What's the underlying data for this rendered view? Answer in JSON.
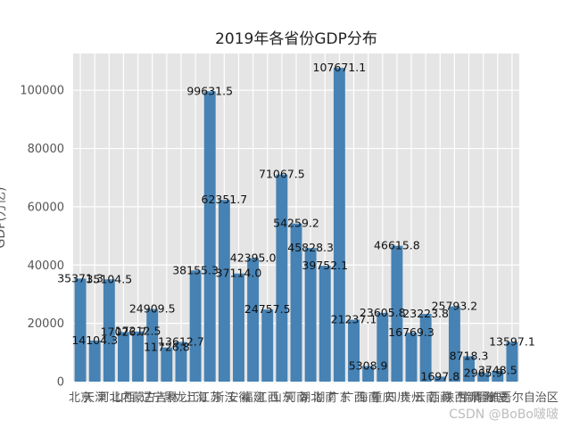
{
  "chart_data": {
    "type": "bar",
    "title": "2019年各省份GDP分布",
    "xlabel": "",
    "ylabel": "GDP(万亿)",
    "ylim": [
      0,
      112600
    ],
    "yticks": [
      0,
      20000,
      40000,
      60000,
      80000,
      100000
    ],
    "grid": true,
    "bar_color": "#4682b4",
    "background": "#e5e5e5",
    "categories": [
      "北京",
      "天津",
      "河北",
      "山西",
      "内蒙古",
      "辽宁",
      "吉林",
      "黑龙江",
      "上海",
      "江苏",
      "浙江",
      "安徽",
      "福建",
      "江西",
      "山东",
      "河南",
      "湖北",
      "湖南",
      "广东",
      "广西",
      "海南",
      "重庆",
      "四川",
      "贵州",
      "云南",
      "西藏",
      "陕西",
      "甘肃",
      "青海",
      "宁夏",
      "新疆维吾尔自治区"
    ],
    "values": [
      35371.3,
      14104.3,
      35104.5,
      17026.7,
      17212.5,
      24909.5,
      11726.8,
      13612.7,
      38155.3,
      99631.5,
      62351.7,
      37114.0,
      42395.0,
      24757.5,
      71067.5,
      54259.2,
      45828.3,
      39752.1,
      107671.1,
      21237.1,
      5308.9,
      23605.8,
      46615.8,
      16769.3,
      23223.8,
      1697.8,
      25793.2,
      8718.3,
      2965.9,
      3748.5,
      13597.1
    ],
    "data_labels": [
      "35371.3",
      "14104.3",
      "35104.5",
      "17026.7",
      "17212.5",
      "24909.5",
      "11726.8",
      "13612.7",
      "38155.3",
      "99631.5",
      "62351.7",
      "37114.0",
      "42395.0",
      "24757.5",
      "71067.5",
      "54259.2",
      "45828.3",
      "39752.1",
      "107671.1",
      "21237.1",
      "5308.9",
      "23605.8",
      "46615.8",
      "16769.3",
      "23223.8",
      "1697.8",
      "25793.2",
      "8718.3",
      "2965.9",
      "3748.5",
      "13597.1"
    ]
  },
  "watermark": "CSDN @BoBo啵啵"
}
